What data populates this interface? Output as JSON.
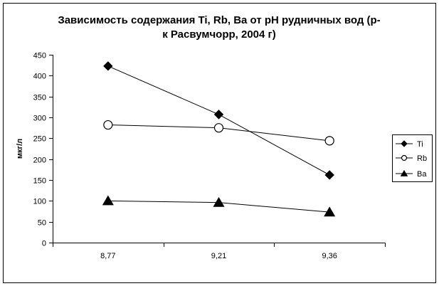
{
  "chart_data": {
    "type": "line",
    "title_lines": [
      "Зависимость содержания Ti, Rb, Ba от pH рудничных вод (р-",
      "к Расвумчорр, 2004 г)"
    ],
    "xlabel": "",
    "ylabel": "мкг/л",
    "categories": [
      "8,77",
      "9,21",
      "9,36"
    ],
    "ylim": [
      0,
      450
    ],
    "yticks": [
      "0",
      "50",
      "100",
      "150",
      "200",
      "250",
      "300",
      "350",
      "400",
      "450"
    ],
    "ytick_values": [
      0,
      50,
      100,
      150,
      200,
      250,
      300,
      350,
      400,
      450
    ],
    "grid": false,
    "legend_position": "right",
    "series": [
      {
        "name": "Ti",
        "marker": "diamond",
        "values": [
          423,
          307,
          162
        ]
      },
      {
        "name": "Rb",
        "marker": "circle-open",
        "values": [
          282,
          275,
          244
        ]
      },
      {
        "name": "Ba",
        "marker": "triangle",
        "values": [
          100,
          96,
          73
        ]
      }
    ],
    "colors": {
      "line": "#000000",
      "marker_fill": "#000000",
      "background": "#ffffff"
    }
  }
}
